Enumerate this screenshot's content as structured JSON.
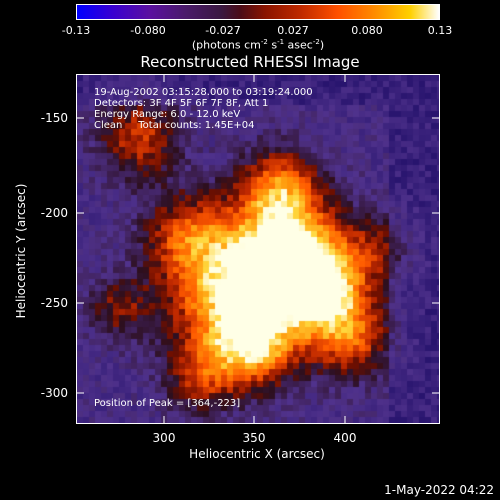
{
  "colorbar": {
    "ticks": [
      "-0.13",
      "-0.080",
      "-0.027",
      "0.027",
      "0.080",
      "0.13"
    ],
    "units_main": "(photons cm",
    "units_exp1": "-2",
    "units_mid": " s",
    "units_exp2": "-1",
    "units_mid2": " asec",
    "units_exp3": "-2",
    "units_end": ")"
  },
  "title": "Reconstructed RHESSI Image",
  "info": {
    "line1": "19-Aug-2002 03:15:28.000 to 03:19:24.000",
    "line2": "Detectors: 3F 4F 5F 6F 7F 8F, Att 1",
    "line3": "Energy Range: 6.0 - 12.0 keV",
    "line4": "Clean     Total counts: 1.45E+04",
    "peak": "Position of Peak = [364,-223]"
  },
  "axes": {
    "xlabel": "Heliocentric X (arcsec)",
    "ylabel": "Heliocentric Y (arcsec)",
    "xticks": [
      "300",
      "350",
      "400"
    ],
    "yticks": [
      "-150",
      "-200",
      "-250",
      "-300"
    ],
    "xrange": [
      257,
      440
    ],
    "yrange": [
      -318,
      -140
    ]
  },
  "footer": "1-May-2022 04:22",
  "peak_position": [
    364,
    -223
  ]
}
